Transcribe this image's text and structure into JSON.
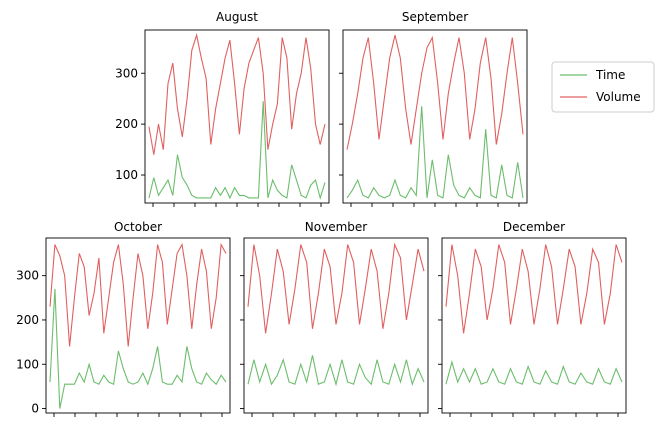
{
  "colors": {
    "time": "#6cbd6c",
    "volume": "#e06060"
  },
  "legend": {
    "items": [
      "Time",
      "Volume"
    ],
    "placement": "right"
  },
  "chart_data": [
    {
      "type": "line",
      "title": "August",
      "ylim": [
        45,
        385
      ],
      "yticks": [
        100,
        200,
        300
      ],
      "series": [
        {
          "name": "Time",
          "values": [
            55,
            95,
            60,
            75,
            90,
            60,
            140,
            95,
            80,
            60,
            55,
            55,
            55,
            55,
            75,
            60,
            75,
            55,
            75,
            60,
            60,
            55,
            55,
            55,
            245,
            55,
            90,
            70,
            60,
            55,
            120,
            90,
            60,
            55,
            80,
            90,
            55,
            85
          ]
        },
        {
          "name": "Volume",
          "values": [
            195,
            140,
            200,
            150,
            280,
            320,
            230,
            175,
            250,
            345,
            375,
            330,
            290,
            160,
            230,
            280,
            330,
            365,
            280,
            180,
            270,
            320,
            345,
            370,
            300,
            150,
            200,
            240,
            370,
            330,
            190,
            260,
            300,
            370,
            310,
            200,
            160,
            200
          ]
        }
      ]
    },
    {
      "type": "line",
      "title": "September",
      "ylim": [
        45,
        385
      ],
      "yticks": [
        100,
        200,
        300
      ],
      "series": [
        {
          "name": "Time",
          "values": [
            55,
            70,
            90,
            60,
            55,
            75,
            60,
            55,
            60,
            90,
            60,
            55,
            75,
            60,
            235,
            55,
            130,
            60,
            55,
            140,
            80,
            60,
            55,
            75,
            60,
            55,
            190,
            60,
            55,
            120,
            60,
            55,
            125,
            55
          ]
        },
        {
          "name": "Volume",
          "values": [
            150,
            200,
            260,
            330,
            370,
            280,
            170,
            250,
            330,
            375,
            330,
            230,
            160,
            230,
            300,
            350,
            370,
            280,
            170,
            260,
            320,
            370,
            300,
            170,
            230,
            320,
            370,
            290,
            160,
            220,
            300,
            370,
            280,
            180
          ]
        }
      ]
    },
    {
      "type": "line",
      "title": "October",
      "ylim": [
        -10,
        385
      ],
      "yticks": [
        0,
        100,
        200,
        300
      ],
      "series": [
        {
          "name": "Time",
          "values": [
            60,
            270,
            0,
            55,
            55,
            55,
            80,
            60,
            100,
            60,
            55,
            75,
            60,
            55,
            130,
            90,
            60,
            55,
            60,
            80,
            55,
            90,
            140,
            60,
            55,
            55,
            75,
            60,
            140,
            90,
            60,
            55,
            80,
            65,
            55,
            75,
            60
          ]
        },
        {
          "name": "Volume",
          "values": [
            230,
            370,
            345,
            300,
            140,
            250,
            350,
            320,
            210,
            260,
            340,
            170,
            250,
            330,
            370,
            280,
            140,
            250,
            350,
            300,
            180,
            260,
            370,
            330,
            190,
            270,
            350,
            370,
            300,
            180,
            280,
            360,
            310,
            180,
            250,
            370,
            350
          ]
        }
      ]
    },
    {
      "type": "line",
      "title": "November",
      "ylim": [
        -10,
        385
      ],
      "yticks": [
        0,
        100,
        200,
        300
      ],
      "series": [
        {
          "name": "Time",
          "values": [
            55,
            110,
            60,
            100,
            55,
            75,
            110,
            60,
            55,
            100,
            60,
            120,
            55,
            60,
            100,
            55,
            110,
            60,
            55,
            100,
            70,
            55,
            110,
            60,
            55,
            100,
            60,
            110,
            55,
            90,
            60
          ]
        },
        {
          "name": "Volume",
          "values": [
            230,
            370,
            300,
            170,
            260,
            360,
            310,
            190,
            270,
            370,
            330,
            180,
            260,
            360,
            320,
            190,
            260,
            370,
            330,
            190,
            270,
            360,
            310,
            180,
            260,
            370,
            340,
            200,
            280,
            360,
            310
          ]
        }
      ]
    },
    {
      "type": "line",
      "title": "December",
      "ylim": [
        -10,
        385
      ],
      "yticks": [
        0,
        100,
        200,
        300
      ],
      "series": [
        {
          "name": "Time",
          "values": [
            55,
            105,
            60,
            90,
            60,
            90,
            55,
            60,
            90,
            60,
            55,
            90,
            60,
            55,
            95,
            60,
            55,
            85,
            60,
            55,
            95,
            60,
            55,
            80,
            60,
            55,
            90,
            60,
            55,
            90,
            60
          ]
        },
        {
          "name": "Volume",
          "values": [
            230,
            370,
            300,
            170,
            260,
            360,
            320,
            200,
            270,
            370,
            330,
            190,
            270,
            360,
            310,
            190,
            270,
            370,
            320,
            190,
            270,
            360,
            320,
            190,
            260,
            360,
            330,
            190,
            260,
            370,
            330
          ]
        }
      ]
    }
  ]
}
